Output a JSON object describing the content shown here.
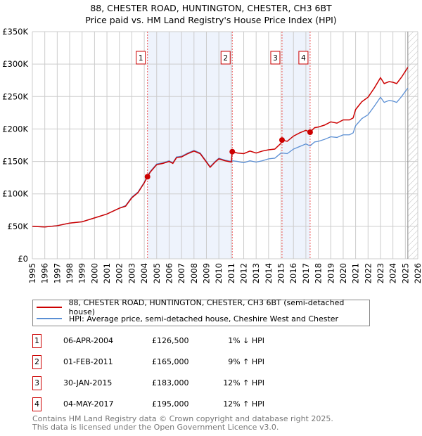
{
  "title": "88, CHESTER ROAD, HUNTINGTON, CHESTER, CH3 6BT",
  "subtitle": "Price paid vs. HM Land Registry's House Price Index (HPI)",
  "chart_data": {
    "type": "line",
    "title": "88, CHESTER ROAD, HUNTINGTON, CHESTER, CH3 6BT — Price paid vs. HM Land Registry's House Price Index (HPI)",
    "xlim": [
      1995,
      2026
    ],
    "ylim": [
      0,
      350000
    ],
    "x_ticks": [
      "1995",
      "1996",
      "1997",
      "1998",
      "1999",
      "2000",
      "2001",
      "2002",
      "2003",
      "2004",
      "2005",
      "2006",
      "2007",
      "2008",
      "2009",
      "2010",
      "2011",
      "2012",
      "2013",
      "2014",
      "2015",
      "2016",
      "2017",
      "2018",
      "2019",
      "2020",
      "2021",
      "2022",
      "2023",
      "2024",
      "2025",
      "2026"
    ],
    "y_ticks": [
      {
        "v": 0,
        "label": "£0"
      },
      {
        "v": 50000,
        "label": "£50K"
      },
      {
        "v": 100000,
        "label": "£100K"
      },
      {
        "v": 150000,
        "label": "£150K"
      },
      {
        "v": 200000,
        "label": "£200K"
      },
      {
        "v": 250000,
        "label": "£250K"
      },
      {
        "v": 300000,
        "label": "£300K"
      },
      {
        "v": 350000,
        "label": "£350K"
      }
    ],
    "grid": true,
    "x": [
      1995,
      1996,
      1997,
      1998,
      1999,
      2000,
      2001,
      2002,
      2002.5,
      2003,
      2003.5,
      2004,
      2004.26,
      2004.5,
      2005,
      2005.5,
      2006,
      2006.3,
      2006.6,
      2007,
      2007.5,
      2008,
      2008.5,
      2009,
      2009.3,
      2009.7,
      2010,
      2010.5,
      2011,
      2011.08,
      2011.5,
      2012,
      2012.5,
      2013,
      2013.5,
      2014,
      2014.5,
      2015,
      2015.08,
      2015.5,
      2016,
      2016.5,
      2017,
      2017.34,
      2017.7,
      2018,
      2018.5,
      2019,
      2019.5,
      2020,
      2020.5,
      2020.8,
      2021,
      2021.5,
      2022,
      2022.5,
      2023,
      2023.3,
      2023.7,
      2024,
      2024.3,
      2024.7,
      2025,
      2025.2
    ],
    "series": [
      {
        "name": "88, CHESTER ROAD, HUNTINGTON, CHESTER, CH3 6BT (semi-detached house)",
        "color": "#cc0000",
        "values": [
          50000,
          49000,
          51000,
          55000,
          57000,
          63000,
          69000,
          78000,
          81000,
          94000,
          102000,
          117000,
          126500,
          134000,
          145000,
          147000,
          150000,
          147000,
          156000,
          157000,
          162000,
          166000,
          162000,
          149000,
          141000,
          149000,
          154000,
          151000,
          149000,
          165000,
          163000,
          162000,
          166000,
          163000,
          166000,
          168000,
          169000,
          178000,
          183000,
          181000,
          189000,
          194000,
          198000,
          195000,
          202000,
          203000,
          206000,
          211000,
          209000,
          214000,
          214000,
          217000,
          230000,
          242000,
          249000,
          263000,
          279000,
          270000,
          273000,
          272000,
          270000,
          280000,
          289000,
          295000
        ]
      },
      {
        "name": "HPI: Average price, semi-detached house, Cheshire West and Chester",
        "color": "#5b8fd4",
        "values": [
          50000,
          49000,
          51000,
          55000,
          57000,
          63000,
          69000,
          78000,
          82000,
          95000,
          103000,
          118000,
          128000,
          135000,
          146000,
          148000,
          151000,
          148000,
          157000,
          158000,
          163000,
          167000,
          163000,
          150000,
          142000,
          150000,
          155000,
          152000,
          150000,
          151000,
          150000,
          148000,
          151000,
          149000,
          151000,
          154000,
          155000,
          163000,
          163000,
          162000,
          169000,
          173000,
          177000,
          174000,
          180000,
          181000,
          184000,
          188000,
          187000,
          191000,
          191000,
          194000,
          205000,
          216000,
          222000,
          235000,
          249000,
          241000,
          244000,
          243000,
          241000,
          250000,
          258000,
          263000
        ]
      }
    ],
    "sales": [
      {
        "id": "1",
        "x": 2004.26,
        "date": "06-APR-2004",
        "price": 126500,
        "price_label": "£126,500",
        "hpi": "1% ↓ HPI"
      },
      {
        "id": "2",
        "x": 2011.08,
        "date": "01-FEB-2011",
        "price": 165000,
        "price_label": "£165,000",
        "hpi": "9% ↑ HPI"
      },
      {
        "id": "3",
        "x": 2015.08,
        "date": "30-JAN-2015",
        "price": 183000,
        "price_label": "£183,000",
        "hpi": "12% ↑ HPI"
      },
      {
        "id": "4",
        "x": 2017.34,
        "date": "04-MAY-2017",
        "price": 195000,
        "price_label": "£195,000",
        "hpi": "12% ↑ HPI"
      }
    ],
    "shaded": [
      [
        2004.26,
        2011.08
      ],
      [
        2015.08,
        2017.34
      ]
    ],
    "forecast_start": 2025.2,
    "legend": "bottom"
  },
  "footer": {
    "line1": "Contains HM Land Registry data © Crown copyright and database right 2025.",
    "line2": "This data is licensed under the Open Government Licence v3.0."
  }
}
